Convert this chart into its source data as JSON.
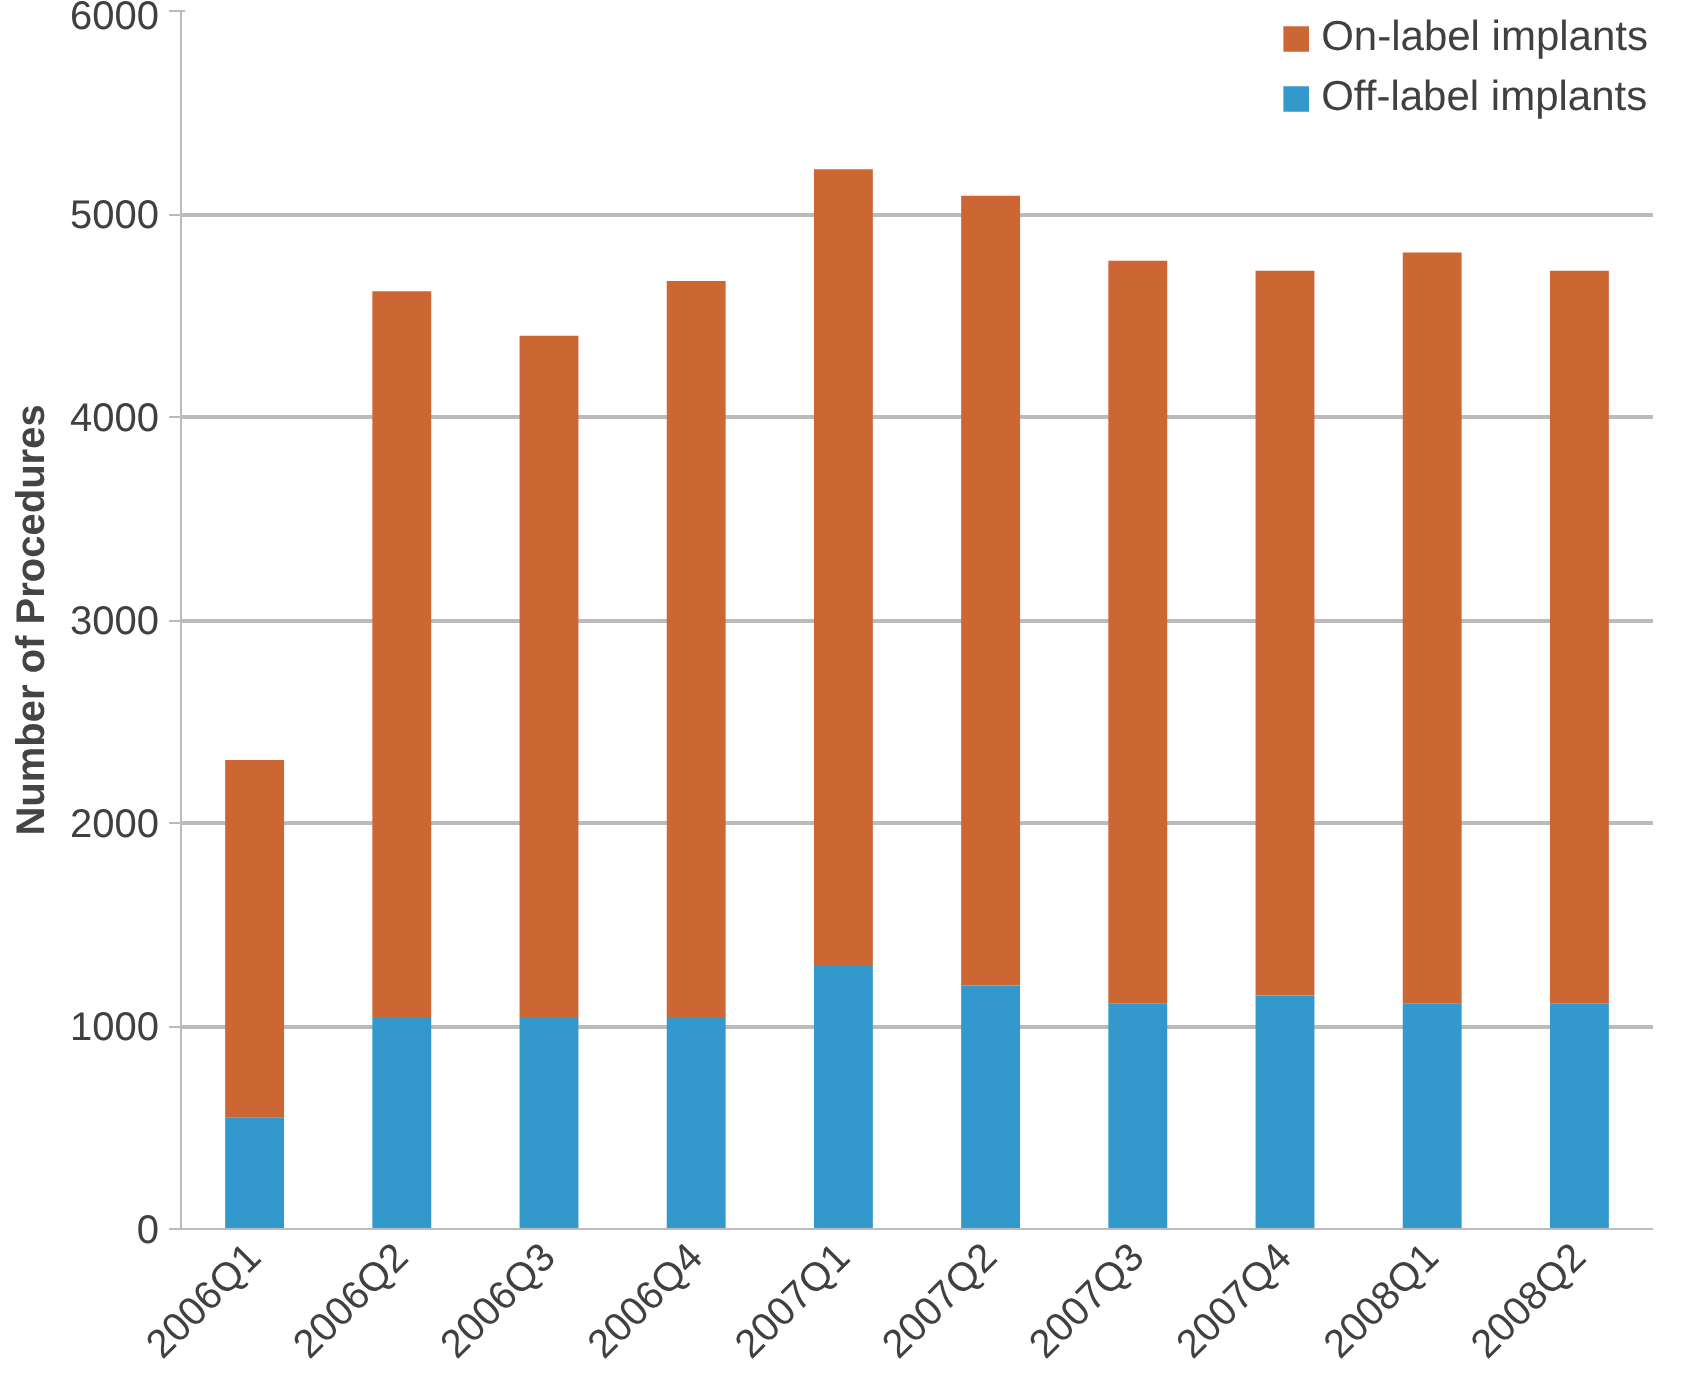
{
  "chart_data": {
    "type": "bar",
    "stacked": true,
    "ylabel": "Number of Procedures",
    "categories": [
      "2006Q1",
      "2006Q2",
      "2006Q3",
      "2006Q4",
      "2007Q1",
      "2007Q2",
      "2007Q3",
      "2007Q4",
      "2008Q1",
      "2008Q2"
    ],
    "series": [
      {
        "name": "Off-label implants",
        "color": "#3399cc",
        "values": [
          550,
          1040,
          1040,
          1040,
          1300,
          1200,
          1110,
          1150,
          1110,
          1110
        ]
      },
      {
        "name": "On-label implants",
        "color": "#cc6633",
        "values": [
          1760,
          3580,
          3360,
          3630,
          3920,
          3890,
          3660,
          3570,
          3700,
          3610
        ]
      }
    ],
    "ylim": [
      0,
      6000
    ],
    "yticks": [
      0,
      1000,
      2000,
      3000,
      4000,
      5000,
      6000
    ],
    "grid": "y",
    "legend": "top right"
  }
}
